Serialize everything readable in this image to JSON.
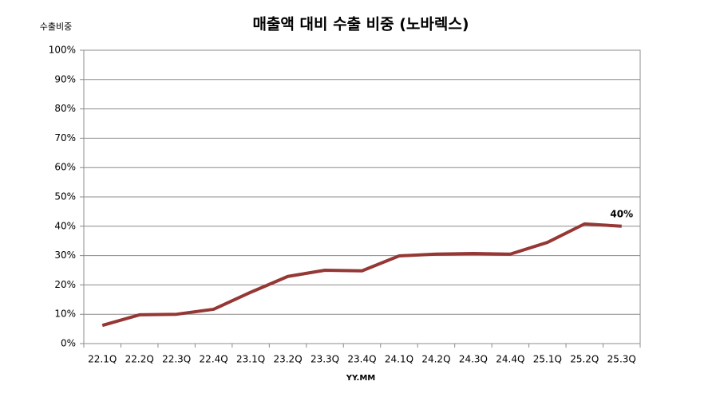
{
  "chart_data": {
    "type": "line",
    "title": "매출액 대비 수출 비중 (노바렉스)",
    "y_label": "수출비중",
    "x_label": "YY.MM",
    "categories": [
      "22.1Q",
      "22.2Q",
      "22.3Q",
      "22.4Q",
      "23.1Q",
      "23.2Q",
      "23.3Q",
      "23.4Q",
      "24.1Q",
      "24.2Q",
      "24.3Q",
      "24.4Q",
      "25.1Q",
      "25.2Q",
      "25.3Q"
    ],
    "series": [
      {
        "name": "수출비중",
        "color": "#953735",
        "values": [
          6.2,
          9.8,
          10,
          11.7,
          17.5,
          22.9,
          25,
          24.8,
          29.9,
          30.5,
          30.7,
          30.5,
          34.5,
          40.8,
          40
        ],
        "value_labels": [
          null,
          null,
          null,
          null,
          null,
          null,
          null,
          null,
          null,
          null,
          null,
          null,
          null,
          null,
          "40%"
        ]
      }
    ],
    "ylim": [
      0,
      100
    ],
    "yticks": [
      {
        "value": 0,
        "label": "0%"
      },
      {
        "value": 10,
        "label": "10%"
      },
      {
        "value": 20,
        "label": "20%"
      },
      {
        "value": 30,
        "label": "30%"
      },
      {
        "value": 40,
        "label": "40%"
      },
      {
        "value": 50,
        "label": "50%"
      },
      {
        "value": 60,
        "label": "60%"
      },
      {
        "value": 70,
        "label": "70%"
      },
      {
        "value": 80,
        "label": "80%"
      },
      {
        "value": 90,
        "label": "90%"
      },
      {
        "value": 100,
        "label": "100%"
      }
    ],
    "grid": true
  }
}
